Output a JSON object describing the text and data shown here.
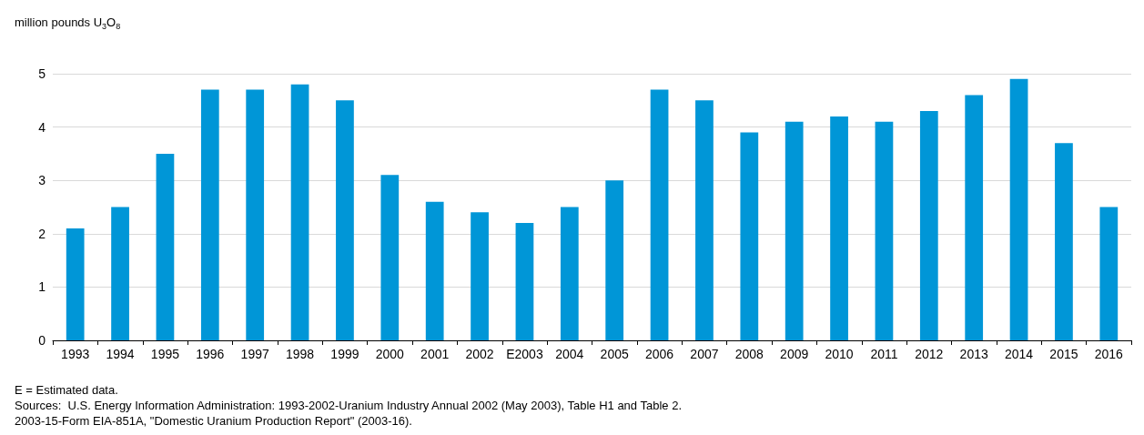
{
  "chart_data": {
    "type": "bar",
    "ylabel": "million pounds U$_{3}$O$_{8}$",
    "categories": [
      "1993",
      "1994",
      "1995",
      "1996",
      "1997",
      "1998",
      "1999",
      "2000",
      "2001",
      "2002",
      "E2003",
      "2004",
      "2005",
      "2006",
      "2007",
      "2008",
      "2009",
      "2010",
      "2011",
      "2012",
      "2013",
      "2014",
      "2015",
      "2016"
    ],
    "values": [
      2.1,
      2.5,
      3.5,
      4.7,
      4.7,
      4.8,
      4.5,
      3.1,
      2.6,
      2.4,
      2.2,
      2.5,
      3.0,
      4.7,
      4.5,
      3.9,
      4.1,
      4.2,
      4.1,
      4.3,
      4.6,
      4.9,
      3.7,
      2.5
    ],
    "color": "#0096d7",
    "ylim": [
      0,
      5
    ],
    "yticks": [
      0,
      1,
      2,
      3,
      4,
      5
    ],
    "grid": "y",
    "annotations": [
      "E = Estimated data.",
      "Sources:  U.S. Energy Information Administration: 1993-2002-Uranium Industry Annual 2002 (May 2003), Table H1 and Table 2.",
      "2003-15-Form EIA-851A, \"Domestic Uranium Production Report\" (2003-16)."
    ]
  }
}
